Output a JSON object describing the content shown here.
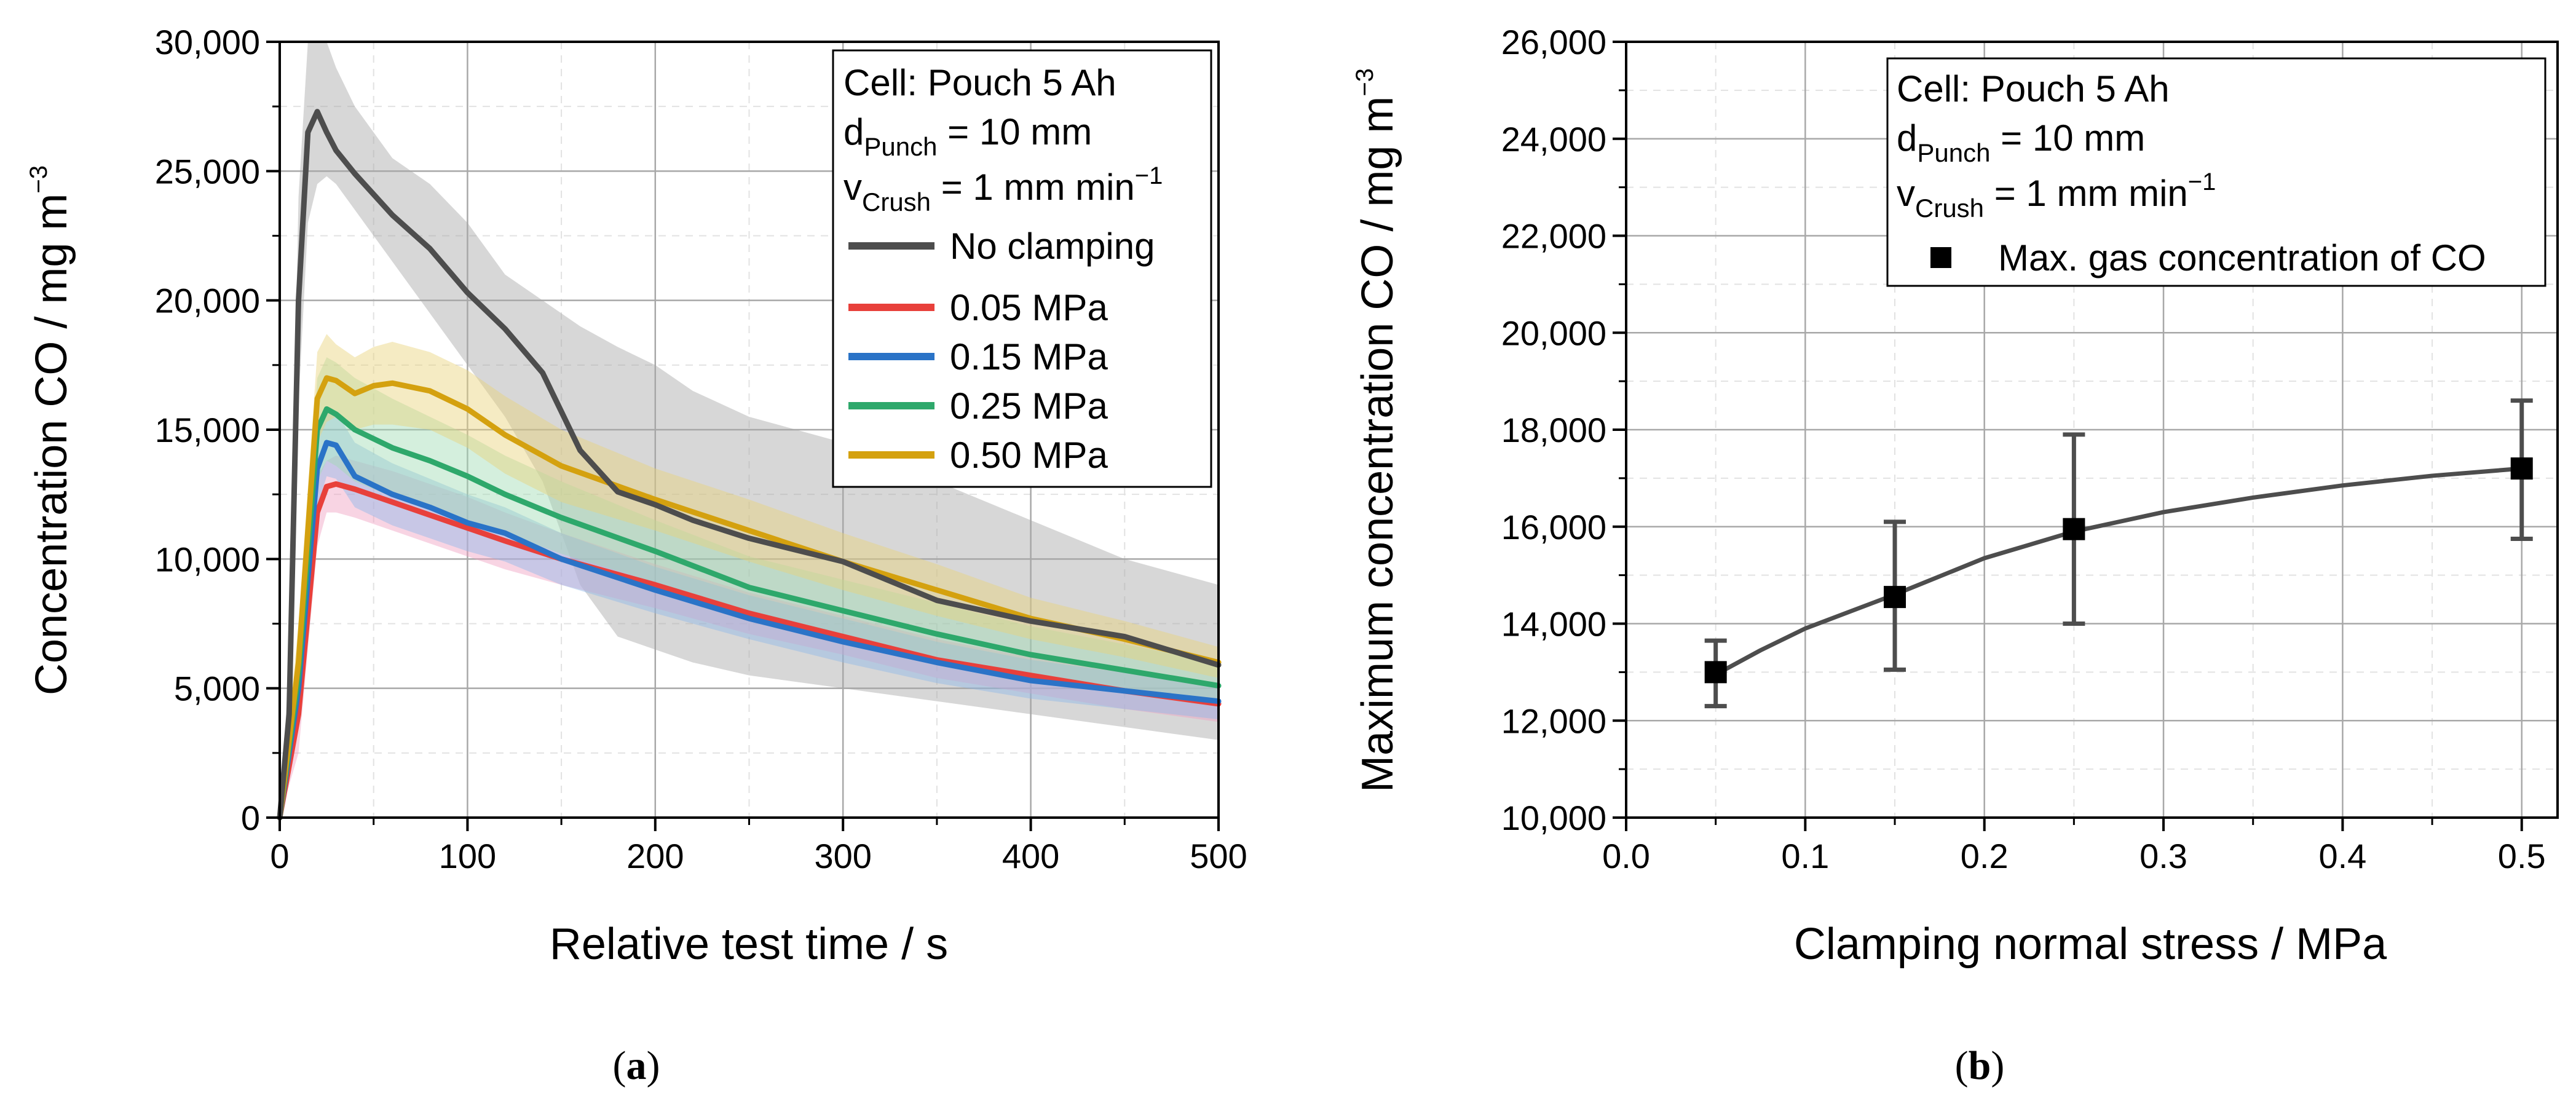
{
  "chart_data": [
    {
      "type": "line",
      "panel": "a",
      "caption": "a",
      "xlabel": "Relative test time / s",
      "ylabel": "Concentration CO / mg m",
      "ylabel_sup": "−3",
      "xlim": [
        0,
        500
      ],
      "ylim": [
        0,
        30000
      ],
      "xticks": [
        0,
        100,
        200,
        300,
        400,
        500
      ],
      "yticks": [
        0,
        5000,
        10000,
        15000,
        20000,
        25000,
        30000
      ],
      "xtick_labels": [
        "0",
        "100",
        "200",
        "300",
        "400",
        "500"
      ],
      "ytick_labels": [
        "0",
        "5,000",
        "10,000",
        "15,000",
        "20,000",
        "25,000",
        "30,000"
      ],
      "grid": true,
      "legend_position": "top-right",
      "annotations": {
        "cell": "Cell: Pouch 5 Ah",
        "punch_main": "d",
        "punch_sub": "Punch",
        "punch_value": " = 10 mm",
        "crush_main": "v",
        "crush_sub": "Crush",
        "crush_value": " = 1 mm min",
        "crush_sup": "−1"
      },
      "series": [
        {
          "name": "No clamping",
          "color": "#4d4d4d",
          "band_color": "#a6a6a6",
          "x": [
            0,
            5,
            10,
            15,
            20,
            25,
            30,
            40,
            50,
            60,
            80,
            100,
            120,
            140,
            160,
            180,
            200,
            220,
            250,
            300,
            350,
            400,
            450,
            500
          ],
          "y": [
            0,
            4000,
            20000,
            26500,
            27300,
            26500,
            25800,
            24900,
            24100,
            23300,
            22000,
            20300,
            18900,
            17200,
            14200,
            12600,
            12100,
            11500,
            10800,
            9900,
            8400,
            7600,
            7000,
            5900
          ],
          "upper": [
            0,
            6000,
            24000,
            30000,
            30000,
            30000,
            29000,
            27500,
            26500,
            25500,
            24500,
            23000,
            21000,
            20000,
            19000,
            18200,
            17500,
            16500,
            15500,
            14500,
            13000,
            11500,
            10000,
            9000
          ],
          "lower": [
            0,
            2000,
            16000,
            23000,
            24500,
            24800,
            24500,
            23500,
            22500,
            21500,
            19500,
            17500,
            15500,
            13000,
            9000,
            7000,
            6500,
            6000,
            5500,
            5000,
            4500,
            4000,
            3500,
            3000
          ]
        },
        {
          "name": "0.05 MPa",
          "color": "#e8403b",
          "band_color": "#f0a0c0",
          "x": [
            0,
            10,
            20,
            25,
            30,
            40,
            60,
            80,
            100,
            120,
            150,
            200,
            250,
            300,
            350,
            400,
            450,
            500
          ],
          "y": [
            0,
            4000,
            11800,
            12800,
            12900,
            12700,
            12200,
            11700,
            11200,
            10700,
            10000,
            9000,
            7900,
            7000,
            6100,
            5500,
            4900,
            4400
          ],
          "upper": [
            0,
            5500,
            13200,
            13800,
            14000,
            13800,
            13400,
            12900,
            12400,
            11800,
            11000,
            9800,
            8700,
            7800,
            6900,
            6200,
            5600,
            5100
          ],
          "lower": [
            0,
            2500,
            10500,
            11800,
            11800,
            11600,
            11100,
            10600,
            10100,
            9600,
            9000,
            8100,
            7100,
            6300,
            5400,
            4800,
            4200,
            3700
          ]
        },
        {
          "name": "0.15 MPa",
          "color": "#2a73c7",
          "band_color": "#8fb8e8",
          "x": [
            0,
            10,
            20,
            25,
            30,
            40,
            60,
            80,
            100,
            120,
            150,
            200,
            250,
            300,
            350,
            400,
            450,
            500
          ],
          "y": [
            0,
            5000,
            13500,
            14500,
            14400,
            13200,
            12500,
            12000,
            11400,
            11000,
            10000,
            8800,
            7700,
            6800,
            6000,
            5300,
            4900,
            4500
          ],
          "upper": [
            0,
            6500,
            15000,
            15800,
            15700,
            14500,
            13700,
            13100,
            12500,
            12000,
            11000,
            9700,
            8600,
            7700,
            6800,
            6100,
            5600,
            5200
          ],
          "lower": [
            0,
            3500,
            12000,
            13200,
            13100,
            12000,
            11300,
            10800,
            10300,
            9900,
            9000,
            7900,
            6900,
            6000,
            5200,
            4600,
            4200,
            3800
          ]
        },
        {
          "name": "0.25 MPa",
          "color": "#2ea86b",
          "band_color": "#9fdcb4",
          "x": [
            0,
            10,
            20,
            25,
            30,
            40,
            60,
            80,
            100,
            120,
            150,
            200,
            250,
            300,
            350,
            400,
            450,
            500
          ],
          "y": [
            0,
            5500,
            15000,
            15800,
            15600,
            15000,
            14300,
            13800,
            13200,
            12500,
            11600,
            10300,
            8900,
            8000,
            7100,
            6300,
            5700,
            5100
          ],
          "upper": [
            0,
            7000,
            17000,
            17800,
            17600,
            17000,
            16200,
            15500,
            14800,
            14000,
            13000,
            11500,
            10100,
            9200,
            8300,
            7400,
            6700,
            6000
          ],
          "lower": [
            0,
            4000,
            13000,
            13800,
            13600,
            13000,
            12400,
            12000,
            11500,
            11000,
            10200,
            9100,
            7800,
            6900,
            6000,
            5300,
            4800,
            4300
          ]
        },
        {
          "name": "0.50 MPa",
          "color": "#d4a10f",
          "band_color": "#e9d27a",
          "x": [
            0,
            10,
            20,
            25,
            30,
            40,
            50,
            60,
            80,
            100,
            120,
            150,
            200,
            250,
            300,
            350,
            400,
            450,
            500
          ],
          "y": [
            0,
            6000,
            16200,
            17000,
            16900,
            16400,
            16700,
            16800,
            16500,
            15800,
            14800,
            13600,
            12300,
            11100,
            9900,
            8800,
            7700,
            6900,
            6000
          ],
          "upper": [
            0,
            7500,
            18000,
            18700,
            18300,
            17800,
            18200,
            18400,
            18000,
            17300,
            16300,
            15000,
            13500,
            12300,
            11000,
            9800,
            8500,
            7600,
            6600
          ],
          "lower": [
            0,
            4500,
            14500,
            15300,
            15500,
            15000,
            15200,
            15200,
            15000,
            14300,
            13300,
            12200,
            11100,
            9900,
            8800,
            7800,
            6900,
            6200,
            5400
          ]
        }
      ]
    },
    {
      "type": "scatter",
      "panel": "b",
      "caption": "b",
      "xlabel": "Clamping normal stress / MPa",
      "ylabel": "Maximum concentration CO / mg m",
      "ylabel_sup": "−3",
      "xlim": [
        0.0,
        0.52
      ],
      "ylim": [
        10000,
        26000
      ],
      "xticks": [
        0.0,
        0.1,
        0.2,
        0.3,
        0.4,
        0.5
      ],
      "yticks": [
        10000,
        12000,
        14000,
        16000,
        18000,
        20000,
        22000,
        24000,
        26000
      ],
      "xtick_labels": [
        "0.0",
        "0.1",
        "0.2",
        "0.3",
        "0.4",
        "0.5"
      ],
      "ytick_labels": [
        "10,000",
        "12,000",
        "14,000",
        "16,000",
        "18,000",
        "20,000",
        "22,000",
        "24,000",
        "26,000"
      ],
      "grid": true,
      "legend_position": "top-right",
      "annotations": {
        "cell": "Cell: Pouch 5 Ah",
        "punch_main": "d",
        "punch_sub": "Punch",
        "punch_value": " = 10 mm",
        "crush_main": "v",
        "crush_sub": "Crush",
        "crush_value": " = 1 mm min",
        "crush_sup": "−1"
      },
      "series": [
        {
          "name": "Max. gas concentration of CO",
          "color": "#000000",
          "x": [
            0.05,
            0.15,
            0.25,
            0.5
          ],
          "y": [
            13000,
            14550,
            15950,
            17200
          ],
          "err_low": [
            12300,
            13050,
            14000,
            15750
          ],
          "err_high": [
            13650,
            16100,
            17900,
            18600
          ]
        }
      ],
      "fit": {
        "color": "#4d4d4d",
        "x": [
          0.05,
          0.075,
          0.1,
          0.125,
          0.15,
          0.2,
          0.25,
          0.3,
          0.35,
          0.4,
          0.45,
          0.5
        ],
        "y": [
          12950,
          13450,
          13900,
          14250,
          14600,
          15350,
          15900,
          16300,
          16600,
          16850,
          17050,
          17200
        ]
      }
    }
  ]
}
